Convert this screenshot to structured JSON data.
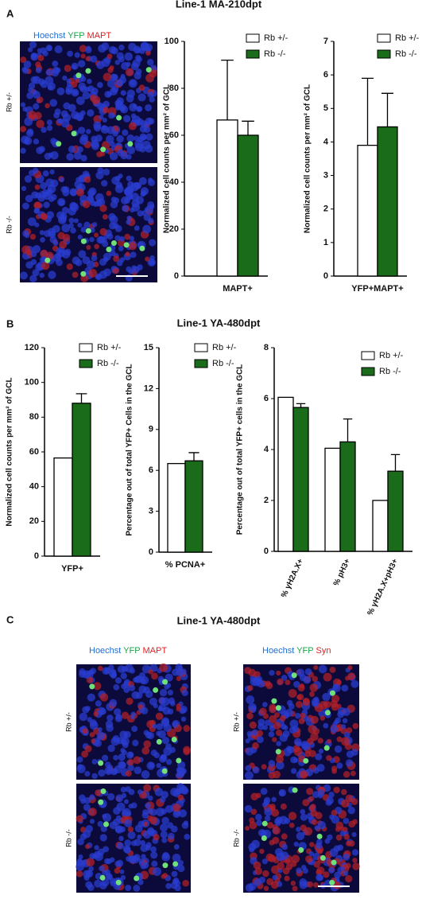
{
  "panels": [
    {
      "label": "A",
      "title": "Line-1 MA-210dpt"
    },
    {
      "label": "B",
      "title": "Line-1 YA-480dpt"
    },
    {
      "label": "C",
      "title": "Line-1 YA-480dpt"
    }
  ],
  "images": [
    {
      "stain": [
        "Hoechst",
        "YFP",
        "MAPT"
      ],
      "stain_colors": [
        "#1f6fd1",
        "#1aa34a",
        "#e02020"
      ],
      "rows": [
        "Rb +/-",
        "Rb -/-"
      ]
    },
    {
      "stain": [
        "Hoechst",
        "YFP",
        "MAPT"
      ],
      "stain_colors": [
        "#1f6fd1",
        "#1aa34a",
        "#e02020"
      ],
      "rows": [
        "Rb +/-",
        "Rb -/-"
      ]
    },
    {
      "stain": [
        "Hoechst",
        "YFP",
        "Syn"
      ],
      "stain_colors": [
        "#1f6fd1",
        "#1aa34a",
        "#e02020"
      ],
      "rows": [
        "Rb +/-",
        "Rb -/-"
      ]
    }
  ],
  "chart_data": [
    {
      "type": "bar",
      "ylabel": "Normalized cell counts per mm² of GCL",
      "categories": [
        "MAPT+"
      ],
      "ylim": [
        0,
        100
      ],
      "yticks": [
        0,
        20,
        40,
        60,
        80,
        100
      ],
      "series": [
        {
          "name": "Rb +/-",
          "color": "#ffffff",
          "values": [
            66.5
          ],
          "errors": [
            25.5
          ]
        },
        {
          "name": "Rb -/-",
          "color": "#1a6b1a",
          "values": [
            60
          ],
          "errors": [
            6
          ]
        }
      ]
    },
    {
      "type": "bar",
      "ylabel": "Normalized cell counts per mm² of GCL",
      "categories": [
        "YFP+MAPT+"
      ],
      "ylim": [
        0,
        7
      ],
      "yticks": [
        0,
        1,
        2,
        3,
        4,
        5,
        6,
        7
      ],
      "series": [
        {
          "name": "Rb +/-",
          "color": "#ffffff",
          "values": [
            3.9
          ],
          "errors": [
            2
          ]
        },
        {
          "name": "Rb -/-",
          "color": "#1a6b1a",
          "values": [
            4.45
          ],
          "errors": [
            1
          ]
        }
      ]
    },
    {
      "type": "bar",
      "ylabel": "Normalized cell counts per mm² of GCL",
      "categories": [
        "YFP+"
      ],
      "ylim": [
        0,
        120
      ],
      "yticks": [
        0,
        20,
        40,
        60,
        80,
        100,
        120
      ],
      "series": [
        {
          "name": "Rb +/-",
          "color": "#ffffff",
          "values": [
            56.5
          ],
          "errors": [
            null
          ]
        },
        {
          "name": "Rb -/-",
          "color": "#1a6b1a",
          "values": [
            88
          ],
          "errors": [
            5.5
          ]
        }
      ]
    },
    {
      "type": "bar",
      "ylabel": "Percentage out of total YFP+ Cells in the GCL",
      "categories": [
        "% PCNA+"
      ],
      "ylim": [
        0,
        15
      ],
      "yticks": [
        0,
        3,
        6,
        9,
        12,
        15
      ],
      "series": [
        {
          "name": "Rb +/-",
          "color": "#ffffff",
          "values": [
            6.5
          ],
          "errors": [
            null
          ]
        },
        {
          "name": "Rb -/-",
          "color": "#1a6b1a",
          "values": [
            6.7
          ],
          "errors": [
            0.6
          ]
        }
      ]
    },
    {
      "type": "bar",
      "ylabel": "Percentage out of total YFP+ cells in the GCL",
      "categories": [
        "% γH2A.X+",
        "% pH3+",
        "% γH2A.X+pH3+"
      ],
      "ylim": [
        0,
        8
      ],
      "yticks": [
        0,
        2,
        4,
        6,
        8
      ],
      "series": [
        {
          "name": "Rb +/-",
          "color": "#ffffff",
          "values": [
            6.05,
            4.05,
            2.0
          ],
          "errors": [
            null,
            null,
            null
          ]
        },
        {
          "name": "Rb -/-",
          "color": "#1a6b1a",
          "values": [
            5.65,
            4.3,
            3.15
          ],
          "errors": [
            0.15,
            0.9,
            0.65
          ]
        }
      ]
    }
  ]
}
